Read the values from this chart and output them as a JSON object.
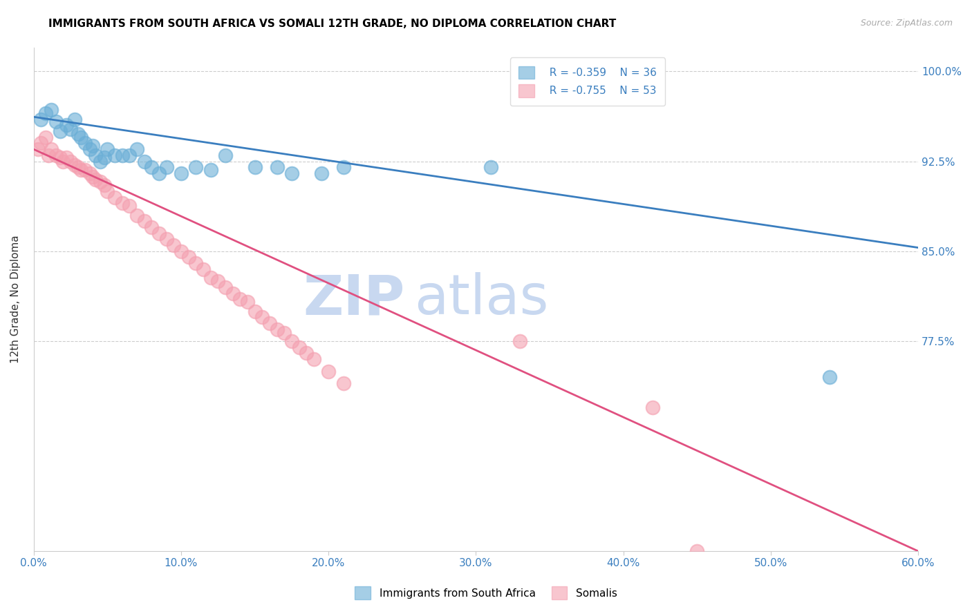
{
  "title": "IMMIGRANTS FROM SOUTH AFRICA VS SOMALI 12TH GRADE, NO DIPLOMA CORRELATION CHART",
  "source": "Source: ZipAtlas.com",
  "ylabel": "12th Grade, No Diploma",
  "ytick_labels": [
    "100.0%",
    "92.5%",
    "85.0%",
    "77.5%"
  ],
  "ytick_values": [
    1.0,
    0.925,
    0.85,
    0.775
  ],
  "legend_blue_r": "R = -0.359",
  "legend_blue_n": "N = 36",
  "legend_pink_r": "R = -0.755",
  "legend_pink_n": "N = 53",
  "legend_label_blue": "Immigrants from South Africa",
  "legend_label_pink": "Somalis",
  "blue_color": "#6aaed6",
  "pink_color": "#f4a0b0",
  "blue_line_color": "#3a7ebf",
  "pink_line_color": "#e05080",
  "watermark_zip": "ZIP",
  "watermark_atlas": "atlas",
  "watermark_color": "#c8d8f0",
  "xmin": 0.0,
  "xmax": 0.6,
  "ymin": 0.6,
  "ymax": 1.02,
  "blue_scatter_x": [
    0.005,
    0.008,
    0.012,
    0.015,
    0.018,
    0.022,
    0.025,
    0.028,
    0.03,
    0.032,
    0.035,
    0.038,
    0.04,
    0.042,
    0.045,
    0.048,
    0.05,
    0.055,
    0.06,
    0.065,
    0.07,
    0.075,
    0.08,
    0.085,
    0.09,
    0.1,
    0.11,
    0.12,
    0.13,
    0.15,
    0.165,
    0.175,
    0.195,
    0.21,
    0.54,
    0.31
  ],
  "blue_scatter_y": [
    0.96,
    0.965,
    0.968,
    0.958,
    0.95,
    0.955,
    0.952,
    0.96,
    0.948,
    0.945,
    0.94,
    0.935,
    0.938,
    0.93,
    0.925,
    0.928,
    0.935,
    0.93,
    0.93,
    0.93,
    0.935,
    0.925,
    0.92,
    0.915,
    0.92,
    0.915,
    0.92,
    0.918,
    0.93,
    0.92,
    0.92,
    0.915,
    0.915,
    0.92,
    0.745,
    0.92
  ],
  "pink_scatter_x": [
    0.003,
    0.005,
    0.008,
    0.01,
    0.012,
    0.015,
    0.018,
    0.02,
    0.022,
    0.025,
    0.028,
    0.03,
    0.032,
    0.035,
    0.038,
    0.04,
    0.042,
    0.045,
    0.048,
    0.05,
    0.055,
    0.06,
    0.065,
    0.07,
    0.075,
    0.08,
    0.085,
    0.09,
    0.095,
    0.1,
    0.105,
    0.11,
    0.115,
    0.12,
    0.125,
    0.13,
    0.135,
    0.14,
    0.145,
    0.15,
    0.155,
    0.16,
    0.165,
    0.17,
    0.175,
    0.18,
    0.185,
    0.19,
    0.2,
    0.21,
    0.33,
    0.42,
    0.45
  ],
  "pink_scatter_y": [
    0.935,
    0.94,
    0.945,
    0.93,
    0.935,
    0.93,
    0.928,
    0.925,
    0.928,
    0.925,
    0.922,
    0.92,
    0.918,
    0.918,
    0.915,
    0.912,
    0.91,
    0.908,
    0.905,
    0.9,
    0.895,
    0.89,
    0.888,
    0.88,
    0.875,
    0.87,
    0.865,
    0.86,
    0.855,
    0.85,
    0.845,
    0.84,
    0.835,
    0.828,
    0.825,
    0.82,
    0.815,
    0.81,
    0.808,
    0.8,
    0.795,
    0.79,
    0.785,
    0.782,
    0.775,
    0.77,
    0.765,
    0.76,
    0.75,
    0.74,
    0.775,
    0.72,
    0.6
  ],
  "blue_line_x0": 0.0,
  "blue_line_y0": 0.962,
  "blue_line_x1": 0.6,
  "blue_line_y1": 0.853,
  "pink_line_x0": 0.0,
  "pink_line_y0": 0.935,
  "pink_line_x1": 0.6,
  "pink_line_y1": 0.6
}
